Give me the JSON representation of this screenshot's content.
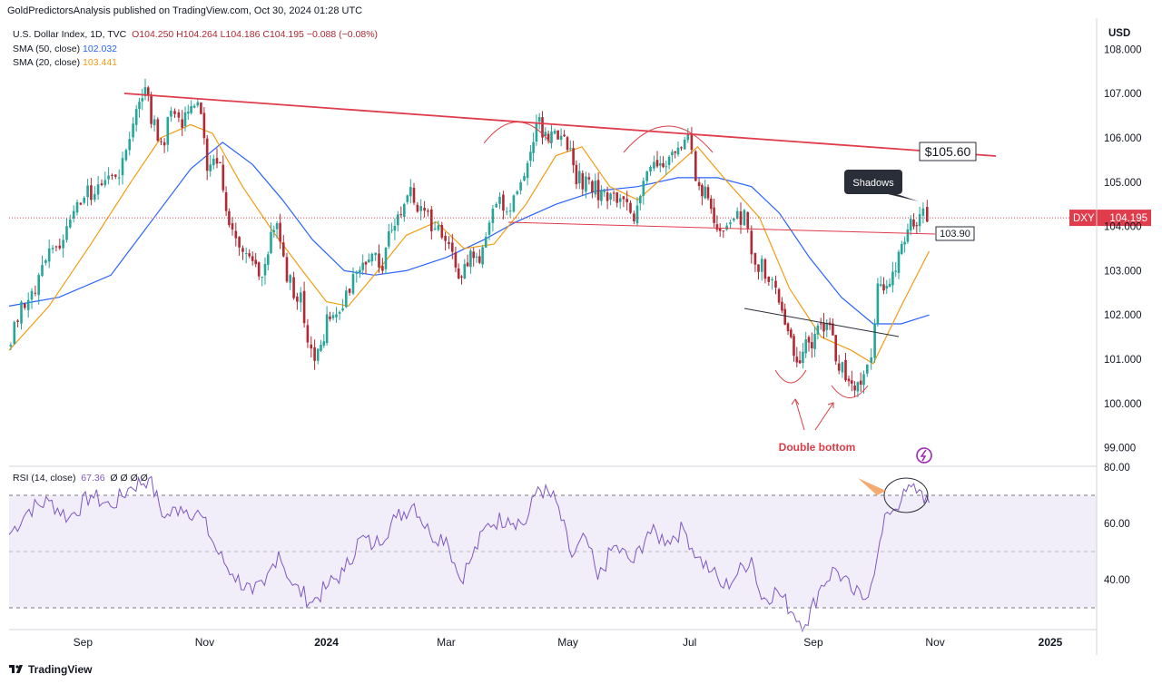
{
  "header": {
    "published": "GoldPredictorsAnalysis published on TradingView.com, Oct 30, 2024 01:28 UTC",
    "symbol": "U.S. Dollar Index, 1D, TVC",
    "ohlc": {
      "o": "O104.250",
      "h": "H104.264",
      "l": "L104.186",
      "c": "C104.195",
      "chg": "−0.088 (−0.08%)"
    },
    "sma50_label": "SMA (50, close)",
    "sma50_value": "102.032",
    "sma20_label": "SMA (20, close)",
    "sma20_value": "103.441",
    "currency": "USD"
  },
  "rsi_legend": {
    "label": "RSI (14, close)",
    "value": "67.36",
    "extra": "Ø Ø Ø Ø"
  },
  "footer": {
    "brand": "TradingView"
  },
  "colors": {
    "up": "#26a69a",
    "down": "#b22833",
    "sma50": "#2962ff",
    "sma20": "#f39c12",
    "rsi": "#7e57c2",
    "trend": "#e03c4c",
    "annot": "#d93e46"
  },
  "chart_data": [
    {
      "type": "candlestick",
      "title": "U.S. Dollar Index, 1D, TVC",
      "ylim": [
        98.6,
        108.3
      ],
      "y_ticks": [
        "99.000",
        "100.000",
        "101.000",
        "102.000",
        "103.000",
        "104.000",
        "105.000",
        "106.000",
        "107.000",
        "108.000"
      ],
      "x_ticks": [
        "Sep",
        "Nov",
        "2024",
        "Mar",
        "May",
        "Jul",
        "Sep",
        "Nov",
        "2025"
      ],
      "last_price": {
        "symbol": "DXY",
        "value": "104.195"
      },
      "price_tags": [
        {
          "text": "$105.60",
          "value": 105.6
        },
        {
          "text": "103.90",
          "value": 103.9
        }
      ],
      "annotations": {
        "shadows": "Shadows",
        "double_bottom": "Double bottom"
      },
      "price_path": [
        [
          "2023-07-26",
          101.3
        ],
        [
          "2023-08-02",
          102.3
        ],
        [
          "2023-08-09",
          102.6
        ],
        [
          "2023-08-16",
          103.3
        ],
        [
          "2023-08-23",
          103.6
        ],
        [
          "2023-08-30",
          104.4
        ],
        [
          "2023-09-06",
          104.8
        ],
        [
          "2023-09-13",
          105.0
        ],
        [
          "2023-09-20",
          105.3
        ],
        [
          "2023-09-27",
          106.2
        ],
        [
          "2023-10-03",
          107.2
        ],
        [
          "2023-10-06",
          106.5
        ],
        [
          "2023-10-11",
          105.8
        ],
        [
          "2023-10-16",
          106.5
        ],
        [
          "2023-10-20",
          106.3
        ],
        [
          "2023-10-26",
          106.8
        ],
        [
          "2023-10-31",
          106.7
        ],
        [
          "2023-11-03",
          105.2
        ],
        [
          "2023-11-08",
          105.6
        ],
        [
          "2023-11-14",
          104.2
        ],
        [
          "2023-11-21",
          103.5
        ],
        [
          "2023-11-29",
          102.8
        ],
        [
          "2023-12-05",
          103.8
        ],
        [
          "2023-12-08",
          104.1
        ],
        [
          "2023-12-13",
          102.9
        ],
        [
          "2023-12-20",
          102.3
        ],
        [
          "2023-12-27",
          100.9
        ],
        [
          "2024-01-02",
          101.8
        ],
        [
          "2024-01-10",
          102.3
        ],
        [
          "2024-01-17",
          103.1
        ],
        [
          "2024-01-23",
          103.4
        ],
        [
          "2024-01-30",
          103.2
        ],
        [
          "2024-02-05",
          104.2
        ],
        [
          "2024-02-13",
          104.9
        ],
        [
          "2024-02-20",
          104.2
        ],
        [
          "2024-02-27",
          103.9
        ],
        [
          "2024-03-05",
          103.6
        ],
        [
          "2024-03-08",
          102.8
        ],
        [
          "2024-03-14",
          103.4
        ],
        [
          "2024-03-20",
          103.4
        ],
        [
          "2024-03-27",
          104.5
        ],
        [
          "2024-04-03",
          104.5
        ],
        [
          "2024-04-10",
          105.1
        ],
        [
          "2024-04-16",
          106.3
        ],
        [
          "2024-04-22",
          106.1
        ],
        [
          "2024-04-30",
          106.2
        ],
        [
          "2024-05-06",
          105.1
        ],
        [
          "2024-05-14",
          104.9
        ],
        [
          "2024-05-20",
          104.6
        ],
        [
          "2024-05-28",
          104.6
        ],
        [
          "2024-06-04",
          104.2
        ],
        [
          "2024-06-07",
          104.9
        ],
        [
          "2024-06-14",
          105.5
        ],
        [
          "2024-06-20",
          105.4
        ],
        [
          "2024-06-26",
          105.9
        ],
        [
          "2024-07-01",
          106.0
        ],
        [
          "2024-07-05",
          105.1
        ],
        [
          "2024-07-11",
          104.6
        ],
        [
          "2024-07-17",
          103.8
        ],
        [
          "2024-07-24",
          104.4
        ],
        [
          "2024-07-31",
          104.1
        ],
        [
          "2024-08-02",
          103.2
        ],
        [
          "2024-08-07",
          103.1
        ],
        [
          "2024-08-14",
          102.6
        ],
        [
          "2024-08-20",
          101.5
        ],
        [
          "2024-08-26",
          100.8
        ],
        [
          "2024-08-29",
          101.3
        ],
        [
          "2024-09-04",
          101.6
        ],
        [
          "2024-09-10",
          101.7
        ],
        [
          "2024-09-13",
          101.1
        ],
        [
          "2024-09-18",
          100.7
        ],
        [
          "2024-09-24",
          100.4
        ],
        [
          "2024-09-27",
          100.5
        ],
        [
          "2024-10-01",
          101.2
        ],
        [
          "2024-10-04",
          102.5
        ],
        [
          "2024-10-10",
          102.9
        ],
        [
          "2024-10-16",
          103.5
        ],
        [
          "2024-10-22",
          104.1
        ],
        [
          "2024-10-25",
          104.3
        ],
        [
          "2024-10-29",
          104.2
        ]
      ],
      "sma50": [
        [
          "2023-07-26",
          102.2
        ],
        [
          "2023-08-20",
          102.4
        ],
        [
          "2023-09-15",
          102.9
        ],
        [
          "2023-10-05",
          104.1
        ],
        [
          "2023-10-25",
          105.3
        ],
        [
          "2023-11-10",
          105.9
        ],
        [
          "2023-11-25",
          105.4
        ],
        [
          "2023-12-10",
          104.6
        ],
        [
          "2023-12-25",
          103.7
        ],
        [
          "2024-01-10",
          103.0
        ],
        [
          "2024-01-25",
          102.9
        ],
        [
          "2024-02-10",
          103.0
        ],
        [
          "2024-03-01",
          103.3
        ],
        [
          "2024-03-20",
          103.7
        ],
        [
          "2024-04-05",
          104.1
        ],
        [
          "2024-04-25",
          104.5
        ],
        [
          "2024-05-15",
          104.8
        ],
        [
          "2024-06-05",
          104.9
        ],
        [
          "2024-06-25",
          105.1
        ],
        [
          "2024-07-15",
          105.1
        ],
        [
          "2024-08-01",
          104.9
        ],
        [
          "2024-08-15",
          104.3
        ],
        [
          "2024-08-30",
          103.3
        ],
        [
          "2024-09-15",
          102.4
        ],
        [
          "2024-10-01",
          101.8
        ],
        [
          "2024-10-15",
          101.8
        ],
        [
          "2024-10-29",
          102.0
        ]
      ],
      "sma20": [
        [
          "2023-07-26",
          101.2
        ],
        [
          "2023-08-15",
          102.2
        ],
        [
          "2023-09-05",
          103.6
        ],
        [
          "2023-09-25",
          105.0
        ],
        [
          "2023-10-10",
          106.0
        ],
        [
          "2023-10-25",
          106.3
        ],
        [
          "2023-11-05",
          106.1
        ],
        [
          "2023-11-20",
          104.9
        ],
        [
          "2023-12-05",
          103.9
        ],
        [
          "2023-12-20",
          103.0
        ],
        [
          "2024-01-01",
          102.3
        ],
        [
          "2024-01-12",
          102.2
        ],
        [
          "2024-01-25",
          102.9
        ],
        [
          "2024-02-10",
          103.8
        ],
        [
          "2024-02-25",
          104.1
        ],
        [
          "2024-03-10",
          103.5
        ],
        [
          "2024-03-25",
          103.6
        ],
        [
          "2024-04-10",
          104.5
        ],
        [
          "2024-04-25",
          105.6
        ],
        [
          "2024-05-08",
          105.8
        ],
        [
          "2024-05-22",
          104.9
        ],
        [
          "2024-06-05",
          104.6
        ],
        [
          "2024-06-20",
          105.2
        ],
        [
          "2024-07-05",
          105.8
        ],
        [
          "2024-07-20",
          105.0
        ],
        [
          "2024-08-05",
          104.2
        ],
        [
          "2024-08-20",
          102.6
        ],
        [
          "2024-09-05",
          101.5
        ],
        [
          "2024-09-20",
          101.2
        ],
        [
          "2024-10-01",
          100.9
        ],
        [
          "2024-10-15",
          102.2
        ],
        [
          "2024-10-29",
          103.44
        ]
      ]
    },
    {
      "type": "line",
      "title": "RSI (14, close)",
      "ylim": [
        20,
        81
      ],
      "y_ticks": [
        "40.00",
        "60.00",
        "80.00"
      ],
      "band_levels": [
        30,
        50,
        70
      ],
      "values": [
        [
          "2023-07-26",
          56
        ],
        [
          "2023-08-05",
          65
        ],
        [
          "2023-08-15",
          68
        ],
        [
          "2023-08-25",
          62
        ],
        [
          "2023-09-05",
          70
        ],
        [
          "2023-09-15",
          66
        ],
        [
          "2023-09-25",
          73
        ],
        [
          "2023-10-04",
          76
        ],
        [
          "2023-10-12",
          62
        ],
        [
          "2023-10-20",
          66
        ],
        [
          "2023-10-30",
          63
        ],
        [
          "2023-11-08",
          49
        ],
        [
          "2023-11-15",
          42
        ],
        [
          "2023-11-25",
          35
        ],
        [
          "2023-12-01",
          38
        ],
        [
          "2023-12-08",
          50
        ],
        [
          "2023-12-15",
          38
        ],
        [
          "2023-12-25",
          32
        ],
        [
          "2024-01-02",
          38
        ],
        [
          "2024-01-10",
          43
        ],
        [
          "2024-01-18",
          55
        ],
        [
          "2024-01-25",
          52
        ],
        [
          "2024-02-05",
          62
        ],
        [
          "2024-02-14",
          67
        ],
        [
          "2024-02-22",
          56
        ],
        [
          "2024-03-01",
          55
        ],
        [
          "2024-03-08",
          40
        ],
        [
          "2024-03-14",
          48
        ],
        [
          "2024-03-22",
          60
        ],
        [
          "2024-04-01",
          62
        ],
        [
          "2024-04-10",
          60
        ],
        [
          "2024-04-16",
          73
        ],
        [
          "2024-04-25",
          68
        ],
        [
          "2024-05-03",
          48
        ],
        [
          "2024-05-10",
          55
        ],
        [
          "2024-05-16",
          40
        ],
        [
          "2024-05-24",
          52
        ],
        [
          "2024-06-03",
          46
        ],
        [
          "2024-06-10",
          57
        ],
        [
          "2024-06-20",
          54
        ],
        [
          "2024-06-28",
          58
        ],
        [
          "2024-07-05",
          48
        ],
        [
          "2024-07-12",
          43
        ],
        [
          "2024-07-18",
          37
        ],
        [
          "2024-07-25",
          42
        ],
        [
          "2024-08-01",
          48
        ],
        [
          "2024-08-06",
          33
        ],
        [
          "2024-08-14",
          36
        ],
        [
          "2024-08-22",
          28
        ],
        [
          "2024-08-28",
          24
        ],
        [
          "2024-09-05",
          38
        ],
        [
          "2024-09-12",
          44
        ],
        [
          "2024-09-20",
          36
        ],
        [
          "2024-09-27",
          33
        ],
        [
          "2024-10-03",
          48
        ],
        [
          "2024-10-08",
          64
        ],
        [
          "2024-10-15",
          68
        ],
        [
          "2024-10-20",
          73
        ],
        [
          "2024-10-24",
          72
        ],
        [
          "2024-10-29",
          67.36
        ]
      ]
    }
  ]
}
